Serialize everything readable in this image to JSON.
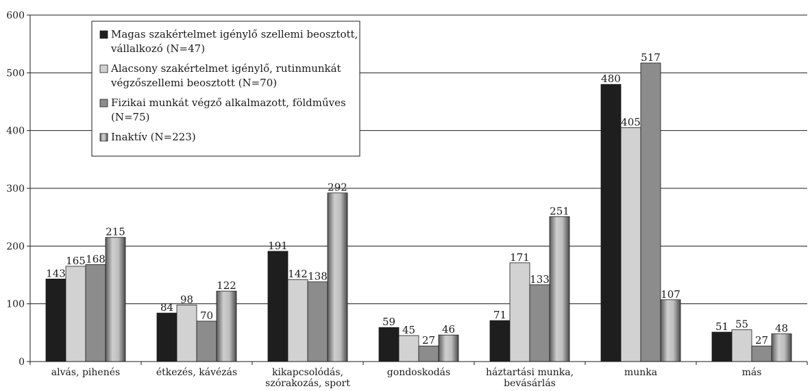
{
  "chart_data": {
    "type": "bar",
    "ylim": [
      0,
      600
    ],
    "yticks": [
      "0",
      "100",
      "200",
      "300",
      "400",
      "500",
      "600"
    ],
    "grid": "horizontal",
    "legend_position": "top-left",
    "categories": [
      [
        "alvás, pihenés"
      ],
      [
        "étkezés, kávézás"
      ],
      [
        "kikapcsolódás,",
        "szórakozás, sport"
      ],
      [
        "gondoskodás"
      ],
      [
        "háztartási munka,",
        "bevásárlás"
      ],
      [
        "munka"
      ],
      [
        "más"
      ]
    ],
    "series": [
      {
        "name": [
          "Magas szakértelmet igénylő szellemi beosztott,",
          "vállalkozó (N=47)"
        ],
        "color": "#1e1e1e",
        "values": [
          143,
          84,
          191,
          59,
          71,
          480,
          51
        ]
      },
      {
        "name": [
          "Alacsony szakértelmet igénylő, rutinmunkát",
          "végzőszellemi beosztott (N=70)"
        ],
        "color": "#d2d2d2",
        "values": [
          165,
          98,
          142,
          45,
          171,
          405,
          55
        ]
      },
      {
        "name": [
          "Fizikai munkát végző alkalmazott, földműves",
          "(N=75)"
        ],
        "color": "#8c8c8c",
        "values": [
          168,
          70,
          138,
          27,
          133,
          517,
          27
        ]
      },
      {
        "name": [
          "Inaktív (N=223)"
        ],
        "color": "#9a9a9a",
        "gradient": true,
        "values": [
          215,
          122,
          292,
          46,
          251,
          107,
          48
        ]
      }
    ]
  }
}
